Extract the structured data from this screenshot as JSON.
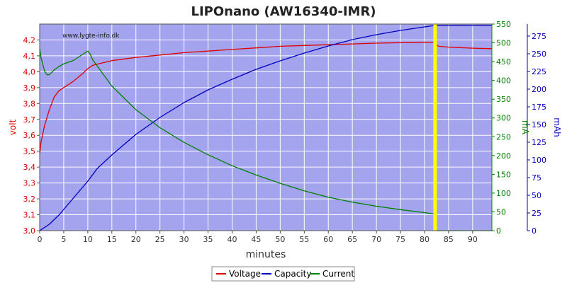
{
  "chart_data": {
    "type": "line",
    "title": "LIPOnano (AW16340-IMR)",
    "watermark": "www.lygte-info.dk",
    "xlabel": "minutes",
    "xlim": [
      0,
      94
    ],
    "xticks": [
      0,
      5,
      10,
      15,
      20,
      25,
      30,
      35,
      40,
      45,
      50,
      55,
      60,
      65,
      70,
      75,
      80,
      85,
      90
    ],
    "plot_background": "#a3a3ee",
    "grid": true,
    "grid_color": "#ffffff",
    "legend_position": "bottom-center",
    "marker_x": 82.2,
    "marker_color": "#ffff00",
    "axes": {
      "volt": {
        "label": "volt",
        "color": "#e00000",
        "side": "left",
        "lim": [
          3.0,
          4.3
        ],
        "ticks": [
          3.0,
          3.1,
          3.2,
          3.3,
          3.4,
          3.5,
          3.6,
          3.7,
          3.8,
          3.9,
          4.0,
          4.1,
          4.2
        ],
        "tick_labels": [
          "3,0",
          "3,1",
          "3,2",
          "3,3",
          "3,4",
          "3,5",
          "3,6",
          "3,7",
          "3,8",
          "3,9",
          "4,0",
          "4,1",
          "4,2"
        ]
      },
      "mA": {
        "label": "mA",
        "color": "#008000",
        "side": "right",
        "lim": [
          0,
          550
        ],
        "ticks": [
          0,
          50,
          100,
          150,
          200,
          250,
          300,
          350,
          400,
          450,
          500,
          550
        ],
        "tick_labels": [
          "0",
          "50",
          "100",
          "150",
          "200",
          "250",
          "300",
          "350",
          "400",
          "450",
          "500",
          "550"
        ]
      },
      "mAh": {
        "label": "mAh",
        "color": "#0000c0",
        "side": "right",
        "lim": [
          0,
          292
        ],
        "ticks": [
          0,
          25,
          50,
          75,
          100,
          125,
          150,
          175,
          200,
          225,
          250,
          275
        ],
        "tick_labels": [
          "0",
          "25",
          "50",
          "75",
          "100",
          "125",
          "150",
          "175",
          "200",
          "225",
          "250",
          "275"
        ]
      }
    },
    "series": [
      {
        "name": "Voltage",
        "axis": "volt",
        "color": "#e00000",
        "x": [
          0,
          0.3,
          1,
          2,
          3,
          4,
          5,
          7,
          9,
          10,
          11,
          13,
          15,
          20,
          25,
          30,
          35,
          40,
          45,
          50,
          55,
          60,
          65,
          70,
          75,
          80,
          82.2,
          82.4,
          83,
          85,
          90,
          94
        ],
        "y": [
          3.48,
          3.56,
          3.66,
          3.76,
          3.84,
          3.88,
          3.9,
          3.94,
          3.99,
          4.02,
          4.04,
          4.055,
          4.07,
          4.09,
          4.105,
          4.12,
          4.13,
          4.14,
          4.15,
          4.16,
          4.165,
          4.17,
          4.175,
          4.18,
          4.183,
          4.185,
          4.185,
          4.17,
          4.16,
          4.155,
          4.148,
          4.145
        ]
      },
      {
        "name": "Capacity",
        "axis": "mAh",
        "color": "#0000c0",
        "x": [
          0,
          2,
          4,
          6,
          8,
          10,
          12,
          15,
          20,
          25,
          30,
          35,
          40,
          45,
          50,
          55,
          60,
          65,
          70,
          75,
          80,
          82.2,
          85,
          90,
          94
        ],
        "y": [
          0,
          9,
          22,
          38,
          54,
          70,
          88,
          107,
          136,
          160,
          181,
          199,
          214,
          228,
          240,
          251,
          261,
          270,
          277,
          283,
          288,
          290,
          290,
          290,
          290
        ]
      },
      {
        "name": "Current",
        "axis": "mA",
        "color": "#008000",
        "x": [
          0,
          0.3,
          1,
          1.5,
          2,
          3,
          4,
          5,
          7,
          9,
          10,
          10.5,
          11,
          13,
          15,
          20,
          25,
          30,
          35,
          40,
          45,
          50,
          55,
          60,
          65,
          70,
          75,
          80,
          82.2,
          82.4,
          83,
          90,
          94
        ],
        "y": [
          485,
          460,
          425,
          415,
          415,
          428,
          437,
          444,
          453,
          470,
          478,
          470,
          455,
          420,
          385,
          322,
          274,
          235,
          202,
          173,
          148,
          126,
          106,
          89,
          76,
          65,
          56,
          48,
          44,
          0,
          0,
          0,
          0
        ]
      }
    ]
  }
}
